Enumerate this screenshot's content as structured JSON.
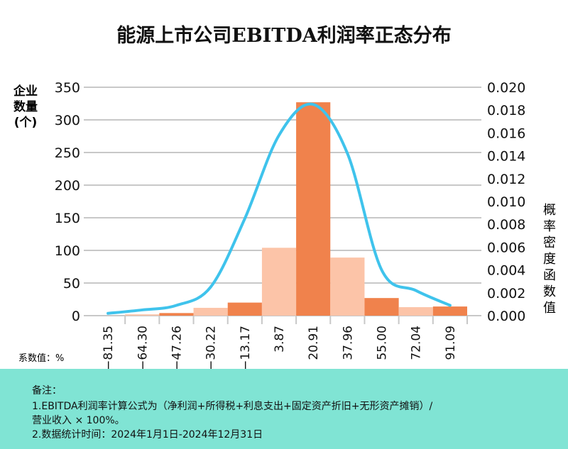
{
  "chart_data": {
    "type": "bar",
    "title": "能源上市公司EBITDA利润率正态分布",
    "ylabel": "企业数量(个)",
    "y2label": "概率密度函数值",
    "xlabel": "系数值：%",
    "categories": [
      "−81.35",
      "−64.30",
      "−47.26",
      "−30.22",
      "−13.17",
      "3.87",
      "20.91",
      "37.96",
      "55.00",
      "72.04",
      "91.09"
    ],
    "series": [
      {
        "type": "bar",
        "axis": "left",
        "values": [
          0,
          2,
          4,
          12,
          20,
          104,
          327,
          89,
          27,
          13,
          14
        ],
        "colors": [
          "#fcc4a8",
          "#fcc4a8",
          "#f0824c",
          "#fcc4a8",
          "#f0824c",
          "#fcc4a8",
          "#f0824c",
          "#fcc4a8",
          "#f0824c",
          "#fcc4a8",
          "#f0824c"
        ]
      },
      {
        "type": "line",
        "axis": "right",
        "values": [
          0.0002,
          0.0005,
          0.0009,
          0.0025,
          0.0085,
          0.0158,
          0.0185,
          0.0142,
          0.004,
          0.0022,
          0.0009
        ],
        "color": "#3fc3ec"
      }
    ],
    "ylim": [
      0,
      350
    ],
    "yticks": [
      "0",
      "50",
      "100",
      "150",
      "200",
      "250",
      "300",
      "350"
    ],
    "y2lim": [
      0,
      0.02
    ],
    "y2ticks": [
      "0.000",
      "0.002",
      "0.004",
      "0.006",
      "0.008",
      "0.010",
      "0.012",
      "0.014",
      "0.016",
      "0.018",
      "0.020"
    ],
    "grid": true
  },
  "note": {
    "title": "备注：",
    "line1": "1.EBITDA利润率计算公式为（净利润+所得税+利息支出+固定资产折旧+无形资产摊销）/",
    "line2": "营业收入 × 100%。",
    "line3": "2.数据统计时间：2024年1月1日-2024年12月31日"
  }
}
